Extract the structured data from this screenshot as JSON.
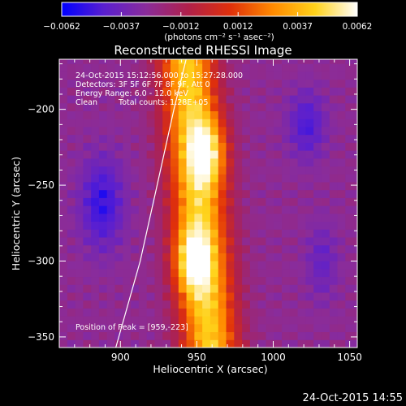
{
  "chart_data": {
    "type": "heatmap",
    "title": "Reconstructed RHESSI Image",
    "xlabel": "Heliocentric X (arcsec)",
    "ylabel": "Heliocentric Y (arcsec)",
    "xlim": [
      860,
      1055
    ],
    "ylim": [
      -357,
      -167
    ],
    "x_ticks": [
      900,
      950,
      1000,
      1050
    ],
    "x_tick_labels": [
      "900",
      "950",
      "1000",
      "1050"
    ],
    "y_ticks": [
      -200,
      -250,
      -300,
      -350
    ],
    "y_tick_labels": [
      "−200",
      "−250",
      "−300",
      "−350"
    ],
    "colorbar": {
      "range": [
        -0.0062,
        0.0062
      ],
      "tick_values": [
        -0.0062,
        -0.0037,
        -0.0012,
        0.0012,
        0.0037,
        0.0062
      ],
      "tick_labels": [
        "−0.0062",
        "−0.0037",
        "−0.0012",
        "0.0012",
        "0.0037",
        "0.0062"
      ],
      "units": "(photons cm⁻² s⁻¹ asec⁻²)",
      "colormap_stops": [
        "#0000ff",
        "#5a1fd0",
        "#8a2c9a",
        "#b0204a",
        "#e0300a",
        "#ff8a00",
        "#ffd21a",
        "#ffffff"
      ]
    },
    "annotations": [
      "24-Oct-2015 15:12:56.000 to 15:27:28.000",
      "Detectors: 3F 5F 6F 7F 8F 9F, Att 0",
      "Energy Range: 6.0 - 12.0 keV",
      "Clean",
      "Total counts: 1.28E+05",
      "Position of Peak = [959,-223]"
    ],
    "peak_position": [
      959,
      -223
    ],
    "bright_sources": [
      {
        "x": 957,
        "y": -228,
        "relative_intensity": 1.0
      },
      {
        "x": 947,
        "y": -300,
        "relative_intensity": 1.0
      }
    ],
    "limb_curve_points": [
      [
        943,
        -167
      ],
      [
        935,
        -200
      ],
      [
        924,
        -250
      ],
      [
        913,
        -300
      ],
      [
        897,
        -357
      ]
    ]
  },
  "footer": {
    "timestamp": "24-Oct-2015 14:55"
  }
}
